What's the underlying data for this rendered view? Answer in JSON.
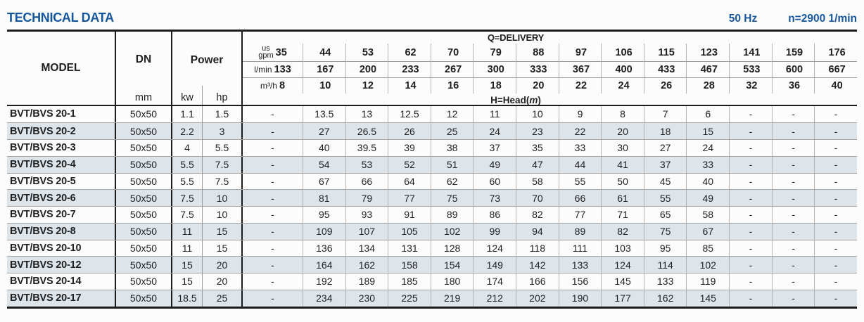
{
  "page": {
    "title": "TECHNICAL DATA",
    "frequency": "50 Hz",
    "speed": "n=2900 1/min",
    "accent_color": "#15579f",
    "stripe_color": "#dde4ea"
  },
  "table": {
    "headers": {
      "model": "MODEL",
      "dn": "DN",
      "dn_unit": "mm",
      "power": "Power",
      "kw_unit": "kw",
      "hp_unit": "hp",
      "delivery_label": "Q=DELIVERY",
      "head_prefix": "H=Head(",
      "head_unit": "m",
      "head_suffix": ")"
    },
    "flow_units": [
      {
        "label_lines": [
          "us",
          "gpm"
        ],
        "values": [
          "35",
          "44",
          "53",
          "62",
          "70",
          "79",
          "88",
          "97",
          "106",
          "115",
          "123",
          "141",
          "159",
          "176"
        ]
      },
      {
        "label_lines": [
          "l/min"
        ],
        "values": [
          "133",
          "167",
          "200",
          "233",
          "267",
          "300",
          "333",
          "367",
          "400",
          "433",
          "467",
          "533",
          "600",
          "667"
        ]
      },
      {
        "label_lines": [
          "m³/h"
        ],
        "values": [
          "8",
          "10",
          "12",
          "14",
          "16",
          "18",
          "20",
          "22",
          "24",
          "26",
          "28",
          "32",
          "36",
          "40"
        ]
      }
    ],
    "rows": [
      {
        "model": "BVT/BVS 20-1",
        "dn": "50x50",
        "kw": "1.1",
        "hp": "1.5",
        "head": [
          "-",
          "13.5",
          "13",
          "12.5",
          "12",
          "11",
          "10",
          "9",
          "8",
          "7",
          "6",
          "-",
          "-",
          "-"
        ]
      },
      {
        "model": "BVT/BVS 20-2",
        "dn": "50x50",
        "kw": "2.2",
        "hp": "3",
        "head": [
          "-",
          "27",
          "26.5",
          "26",
          "25",
          "24",
          "23",
          "22",
          "20",
          "18",
          "15",
          "-",
          "-",
          "-"
        ]
      },
      {
        "model": "BVT/BVS 20-3",
        "dn": "50x50",
        "kw": "4",
        "hp": "5.5",
        "head": [
          "-",
          "40",
          "39.5",
          "39",
          "38",
          "37",
          "35",
          "33",
          "30",
          "27",
          "24",
          "-",
          "-",
          "-"
        ]
      },
      {
        "model": "BVT/BVS 20-4",
        "dn": "50x50",
        "kw": "5.5",
        "hp": "7.5",
        "head": [
          "-",
          "54",
          "53",
          "52",
          "51",
          "49",
          "47",
          "44",
          "41",
          "37",
          "33",
          "-",
          "-",
          "-"
        ]
      },
      {
        "model": "BVT/BVS 20-5",
        "dn": "50x50",
        "kw": "5.5",
        "hp": "7.5",
        "head": [
          "-",
          "67",
          "66",
          "64",
          "62",
          "60",
          "58",
          "55",
          "50",
          "45",
          "40",
          "-",
          "-",
          "-"
        ]
      },
      {
        "model": "BVT/BVS 20-6",
        "dn": "50x50",
        "kw": "7.5",
        "hp": "10",
        "head": [
          "-",
          "81",
          "79",
          "77",
          "75",
          "73",
          "70",
          "66",
          "61",
          "55",
          "49",
          "-",
          "-",
          "-"
        ]
      },
      {
        "model": "BVT/BVS 20-7",
        "dn": "50x50",
        "kw": "7.5",
        "hp": "10",
        "head": [
          "-",
          "95",
          "93",
          "91",
          "89",
          "86",
          "82",
          "77",
          "71",
          "65",
          "58",
          "-",
          "-",
          "-"
        ]
      },
      {
        "model": "BVT/BVS 20-8",
        "dn": "50x50",
        "kw": "11",
        "hp": "15",
        "head": [
          "-",
          "109",
          "107",
          "105",
          "102",
          "99",
          "94",
          "89",
          "82",
          "75",
          "67",
          "-",
          "-",
          "-"
        ]
      },
      {
        "model": "BVT/BVS 20-10",
        "dn": "50x50",
        "kw": "11",
        "hp": "15",
        "head": [
          "-",
          "136",
          "134",
          "131",
          "128",
          "124",
          "118",
          "111",
          "103",
          "95",
          "85",
          "-",
          "-",
          "-"
        ]
      },
      {
        "model": "BVT/BVS 20-12",
        "dn": "50x50",
        "kw": "15",
        "hp": "20",
        "head": [
          "-",
          "164",
          "162",
          "158",
          "154",
          "149",
          "142",
          "133",
          "124",
          "114",
          "102",
          "-",
          "-",
          "-"
        ]
      },
      {
        "model": "BVT/BVS 20-14",
        "dn": "50x50",
        "kw": "15",
        "hp": "20",
        "head": [
          "-",
          "192",
          "189",
          "185",
          "180",
          "174",
          "166",
          "156",
          "145",
          "133",
          "119",
          "-",
          "-",
          "-"
        ]
      },
      {
        "model": "BVT/BVS 20-17",
        "dn": "50x50",
        "kw": "18.5",
        "hp": "25",
        "head": [
          "-",
          "234",
          "230",
          "225",
          "219",
          "212",
          "202",
          "190",
          "177",
          "162",
          "145",
          "-",
          "-",
          "-"
        ]
      }
    ]
  }
}
